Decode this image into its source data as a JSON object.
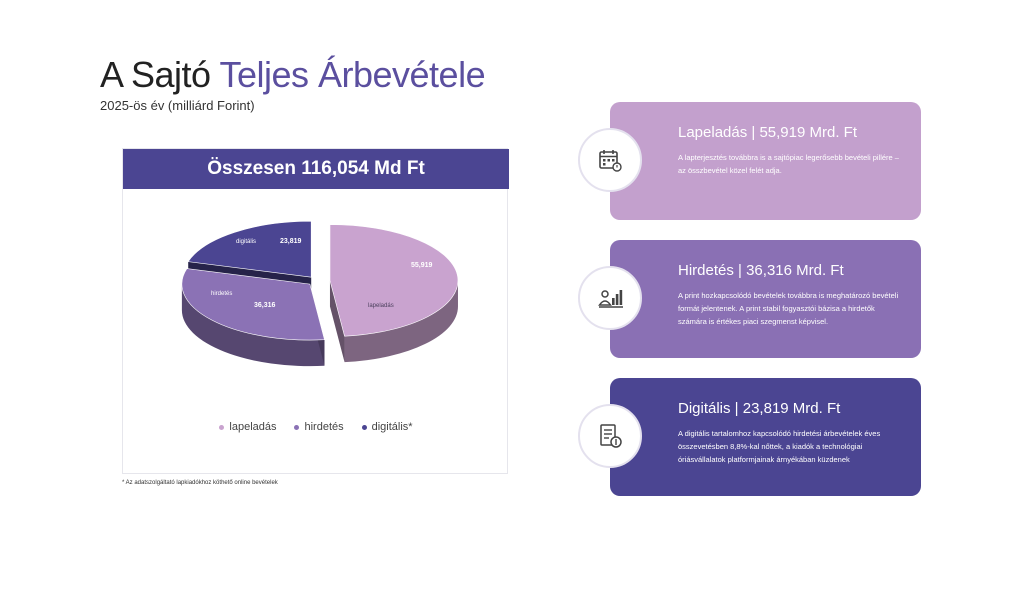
{
  "page": {
    "title_part1": "A Sajtó",
    "title_part2": "Teljes Árbevétele",
    "subtitle": "2025-ös év (milliárd Forint)",
    "footnote": "* Az adatszolgáltató lapkiadókhoz köthető online bevételek"
  },
  "chart_data": {
    "type": "pie",
    "title": "Összesen 116,054 Md Ft",
    "categories": [
      "lapeladás",
      "hirdetés",
      "digitális*"
    ],
    "values": [
      55.919,
      36.316,
      23.819
    ],
    "value_labels": [
      "55,919",
      "36,316",
      "23,819"
    ],
    "slice_labels": [
      "lapeladás",
      "hirdetés",
      "digitális"
    ],
    "colors": [
      "#c9a3cf",
      "#8b72b5",
      "#4b4592"
    ],
    "legend_position": "bottom"
  },
  "cards": [
    {
      "title": "Lapeladás | 55,919 Mrd. Ft",
      "text": "A lapterjesztés továbbra is a sajtópiac legerősebb bevételi pillére – az összbevétel közel felét adja.",
      "color": "#c3a0cd",
      "icon": "calendar-icon"
    },
    {
      "title": "Hirdetés | 36,316 Mrd. Ft",
      "text": "A print hozkapcsolódó bevételek továbbra is meghatározó bevételi formát jelentenek. A print stabil fogyasztói bázisa a hirdetők számára is értékes piaci szegmenst képvisel.",
      "color": "#8a70b4",
      "icon": "people-chart-icon"
    },
    {
      "title": "Digitális | 23,819 Mrd. Ft",
      "text": "A digitális tartalomhoz kapcsolódó hirdetési árbevételek éves összevetésben 8,8%-kal nőttek, a kiadók a technológiai óriásvállalatok platformjainak árnyékában küzdenek",
      "color": "#4b4592",
      "icon": "document-money-icon"
    }
  ]
}
